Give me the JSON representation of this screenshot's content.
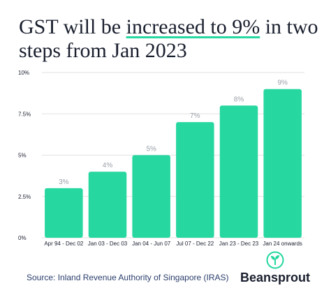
{
  "title": {
    "prefix": "GST will be ",
    "highlight": "increased to 9%",
    "suffix": " in two steps from Jan 2023"
  },
  "footer": {
    "source": "Source: Inland Revenue Authority of Singapore (IRAS)",
    "brand": "Beansprout",
    "logo_icon": "sprout-leaf-icon"
  },
  "colors": {
    "bar": "#27d7a0",
    "value_label": "#9aa0a8",
    "grid": "#e2e2e2",
    "text": "#1a1f2e",
    "highlight_underline": "#27d7a0"
  },
  "chart_data": {
    "type": "bar",
    "categories": [
      "Apr 94 - Dec 02",
      "Jan 03 - Dec 03",
      "Jan 04 - Jun 07",
      "Jul 07 - Dec 22",
      "Jan 23 - Dec 23",
      "Jan 24 onwards"
    ],
    "values": [
      3,
      4,
      5,
      7,
      8,
      9
    ],
    "value_labels": [
      "3%",
      "4%",
      "5%",
      "7%",
      "8%",
      "9%"
    ],
    "ylim": [
      0,
      10
    ],
    "yticks": [
      0,
      2.5,
      5,
      7.5,
      10
    ],
    "ytick_labels": [
      "0%",
      "2.5%",
      "5%",
      "7.5%",
      "10%"
    ],
    "grid": true,
    "xlabel": "",
    "ylabel": ""
  }
}
